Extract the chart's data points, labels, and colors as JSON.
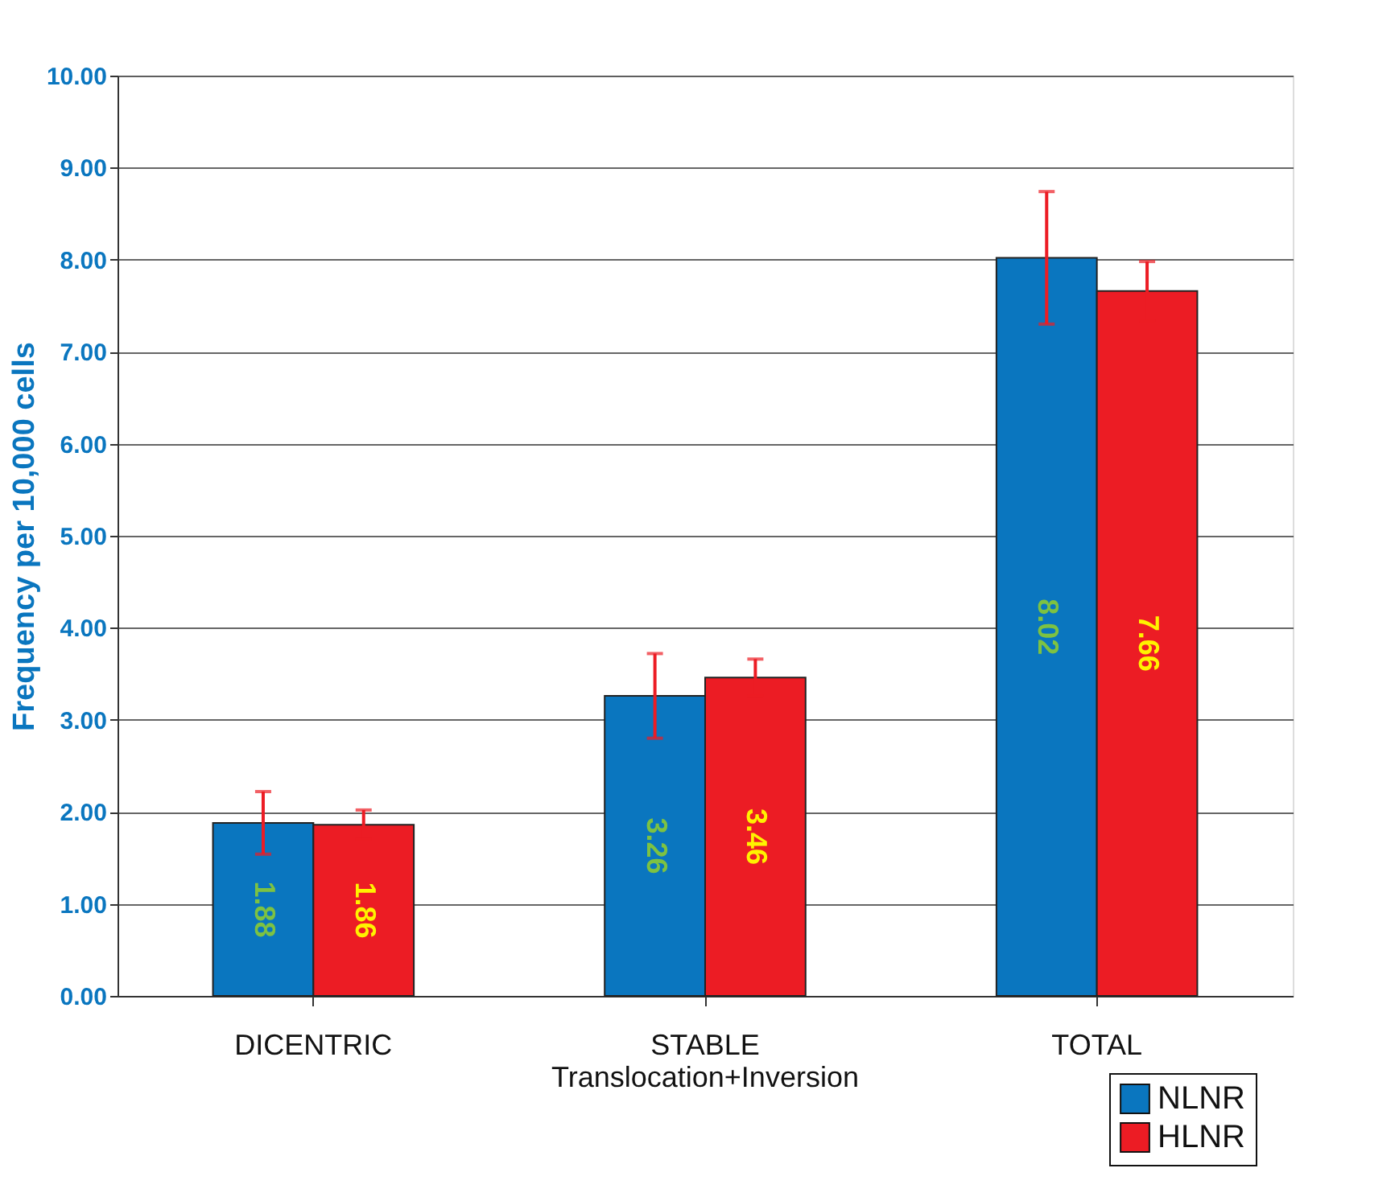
{
  "chart_data": {
    "type": "bar",
    "ylabel": "Frequency per 10,000 cells",
    "categories": [
      "DICENTRIC",
      "STABLE\nTranslocation+Inversion",
      "TOTAL"
    ],
    "series": [
      {
        "name": "NLNR",
        "color": "#0a76bf",
        "values": [
          1.88,
          3.26,
          8.02
        ],
        "errors": [
          0.34,
          0.46,
          0.72
        ]
      },
      {
        "name": "HLNR",
        "color": "#ec1c24",
        "values": [
          1.86,
          3.46,
          7.66
        ],
        "errors": [
          0.16,
          0.2,
          0.32
        ]
      }
    ],
    "ylim": [
      0,
      10
    ],
    "yticks": [
      {
        "value": 0,
        "label": "0.00"
      },
      {
        "value": 1,
        "label": "1.00"
      },
      {
        "value": 2,
        "label": "2.00"
      },
      {
        "value": 3,
        "label": "3.00"
      },
      {
        "value": 4,
        "label": "4.00"
      },
      {
        "value": 5,
        "label": "5.00"
      },
      {
        "value": 6,
        "label": "6.00"
      },
      {
        "value": 7,
        "label": "7.00"
      },
      {
        "value": 8,
        "label": "8.00"
      },
      {
        "value": 9,
        "label": "9.00"
      },
      {
        "value": 10,
        "label": "10.00"
      }
    ],
    "grid": "y",
    "legend": "bottom right",
    "data_labels": true
  }
}
